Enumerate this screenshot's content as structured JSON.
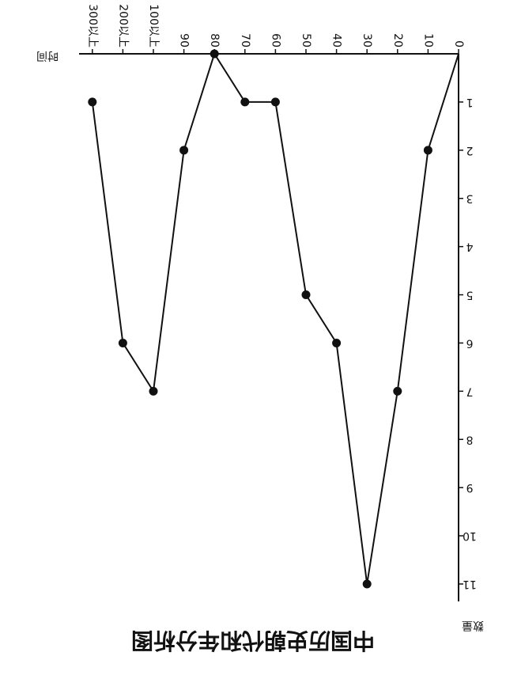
{
  "chart_data": {
    "type": "line",
    "title": "中国历史朝代和年分析图",
    "x_label": "时间",
    "y_label": "数量",
    "categories": [
      "0",
      "10",
      "20",
      "30",
      "40",
      "50",
      "60",
      "70",
      "80",
      "90",
      "100以上",
      "200以上",
      "300以上"
    ],
    "values": [
      0,
      2,
      7,
      11,
      6,
      5,
      1,
      1,
      0,
      2,
      7,
      6,
      1
    ],
    "color": "#111111",
    "ylim": [
      0,
      11
    ],
    "yticks": [
      1,
      2,
      3,
      4,
      5,
      6,
      7,
      8,
      9,
      10,
      11
    ]
  }
}
